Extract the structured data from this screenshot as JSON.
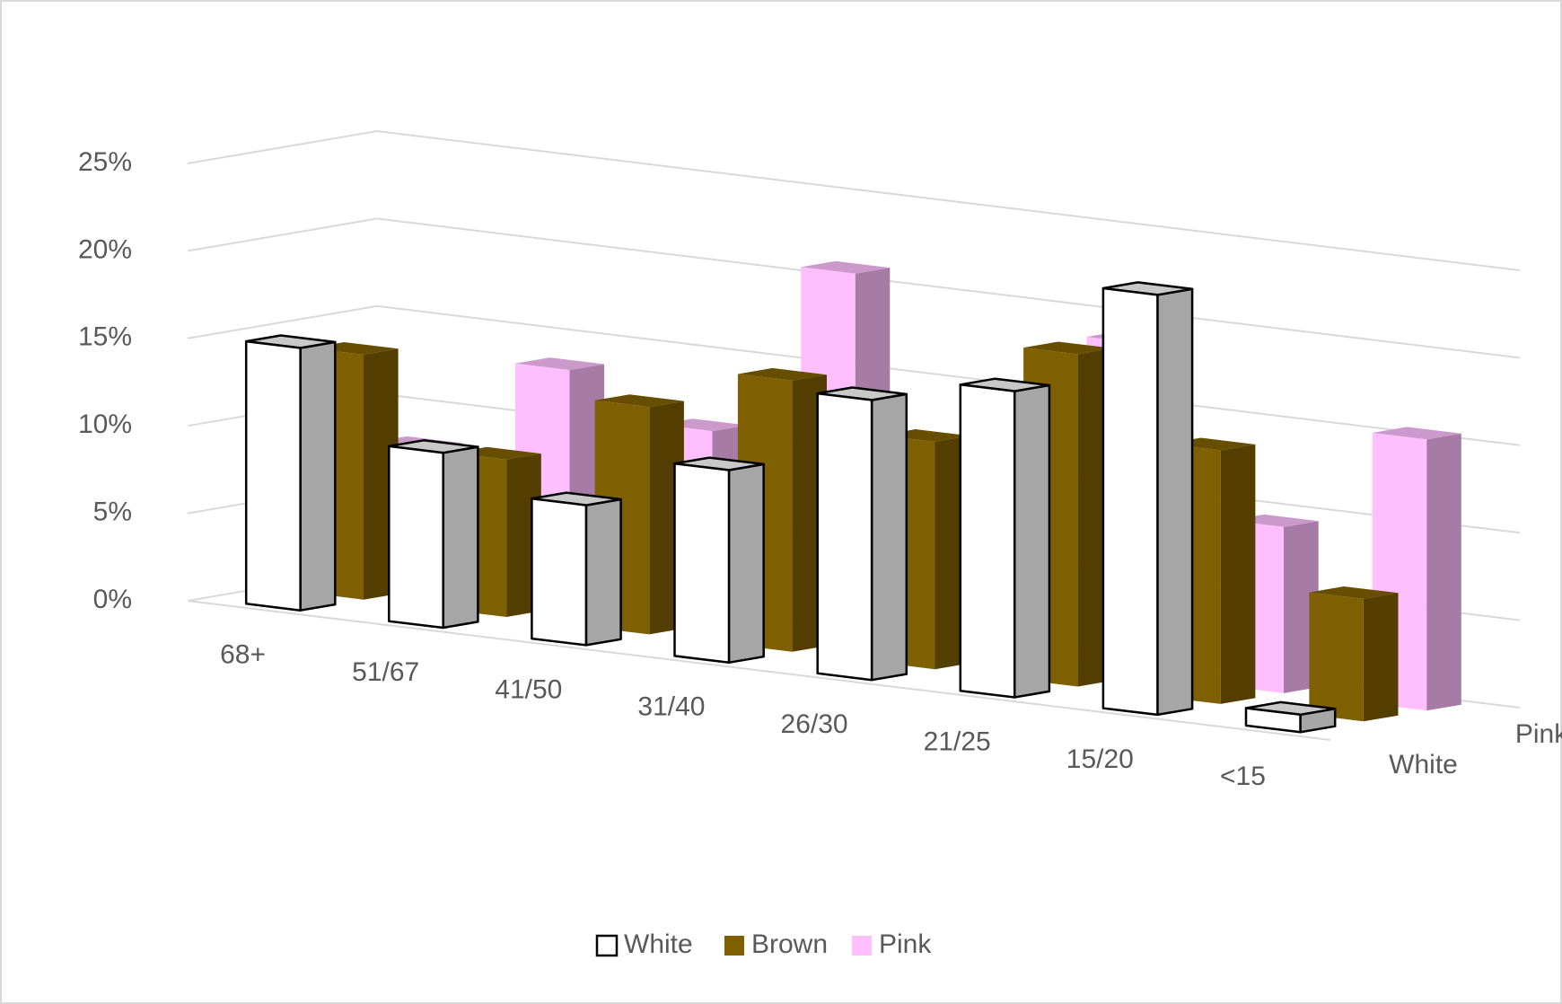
{
  "chart_data": {
    "type": "bar3d",
    "categories": [
      "68+",
      "51/67",
      "41/50",
      "31/40",
      "26/30",
      "21/25",
      "15/20",
      "<15"
    ],
    "series": [
      {
        "name": "White",
        "color": "#ffffff",
        "values": [
          15,
          10,
          8,
          11,
          16,
          17.5,
          24,
          1
        ]
      },
      {
        "name": "Brown",
        "color": "#7f6000",
        "values": [
          14,
          9,
          13,
          15.5,
          13,
          19,
          14.5,
          7
        ]
      },
      {
        "name": "Pink",
        "color": "#ffbfff",
        "values": [
          8,
          13.5,
          11,
          21,
          8,
          19,
          9.5,
          15.5
        ]
      }
    ],
    "ylim": [
      0,
      25
    ],
    "yticks": [
      {
        "value": 0,
        "label": "0%"
      },
      {
        "value": 5,
        "label": "5%"
      },
      {
        "value": 10,
        "label": "10%"
      },
      {
        "value": 15,
        "label": "15%"
      },
      {
        "value": 20,
        "label": "20%"
      },
      {
        "value": 25,
        "label": "25%"
      }
    ],
    "grid": true,
    "legend": "bottom"
  }
}
